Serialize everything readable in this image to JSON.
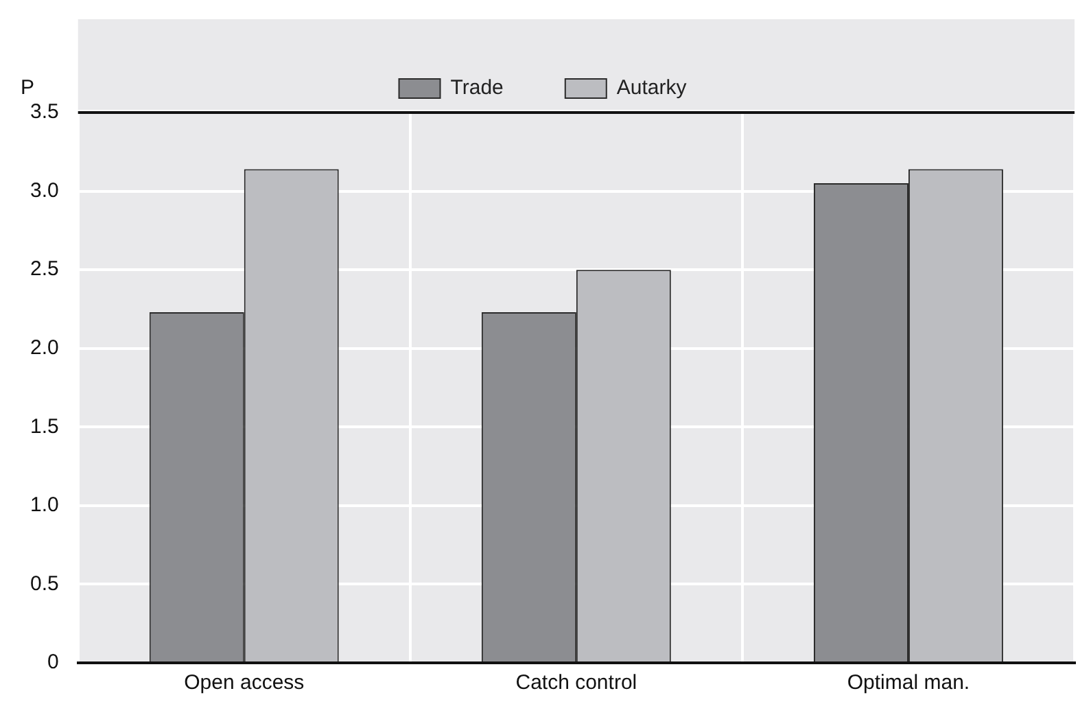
{
  "chart_data": {
    "type": "bar",
    "ylabel": "P",
    "categories": [
      "Open access",
      "Catch control",
      "Optimal man."
    ],
    "series": [
      {
        "name": "Trade",
        "color": "#8c8d91",
        "values": [
          2.23,
          2.23,
          3.05
        ]
      },
      {
        "name": "Autarky",
        "color": "#bcbdc1",
        "values": [
          3.14,
          2.5,
          3.14
        ]
      }
    ],
    "ylim": [
      0,
      3.5
    ],
    "yticks": [
      0,
      0.5,
      {
        "value": 1,
        "label": "1.0"
      },
      1.5,
      {
        "value": 2,
        "label": "2.0"
      },
      2.5,
      {
        "value": 3,
        "label": "3.0"
      },
      3.5
    ],
    "grid": true,
    "legend": "top"
  }
}
